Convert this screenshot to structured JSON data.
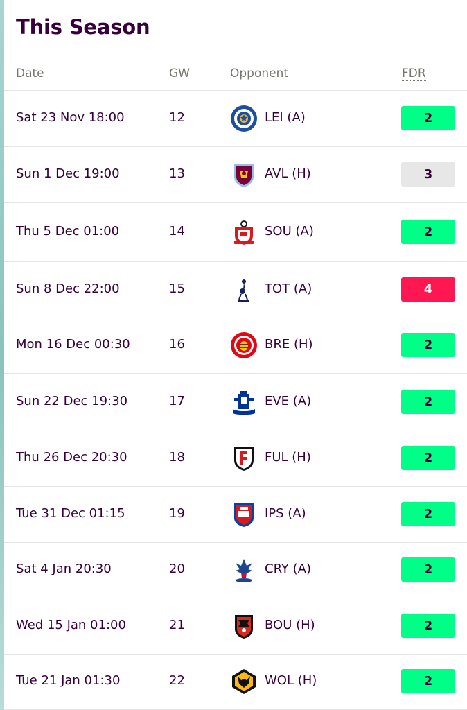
{
  "title": "This Season",
  "columns": {
    "date": "Date",
    "gw": "GW",
    "opponent": "Opponent",
    "fdr": "FDR"
  },
  "fdr_colors": {
    "2": {
      "bg": "#00ff87",
      "fg": "#37003c"
    },
    "3": {
      "bg": "#e7e7e7",
      "fg": "#37003c"
    },
    "4": {
      "bg": "#ff1751",
      "fg": "#ffffff"
    }
  },
  "fixtures": [
    {
      "date": "Sat 23 Nov 18:00",
      "gw": "12",
      "opponent": "LEI (A)",
      "fdr": "2",
      "crest": "leicester-crest-icon"
    },
    {
      "date": "Sun 1 Dec 19:00",
      "gw": "13",
      "opponent": "AVL (H)",
      "fdr": "3",
      "crest": "aston-villa-crest-icon"
    },
    {
      "date": "Thu 5 Dec 01:00",
      "gw": "14",
      "opponent": "SOU (A)",
      "fdr": "2",
      "crest": "southampton-crest-icon"
    },
    {
      "date": "Sun 8 Dec 22:00",
      "gw": "15",
      "opponent": "TOT (A)",
      "fdr": "4",
      "crest": "tottenham-crest-icon"
    },
    {
      "date": "Mon 16 Dec 00:30",
      "gw": "16",
      "opponent": "BRE (H)",
      "fdr": "2",
      "crest": "brentford-crest-icon"
    },
    {
      "date": "Sun 22 Dec 19:30",
      "gw": "17",
      "opponent": "EVE (A)",
      "fdr": "2",
      "crest": "everton-crest-icon"
    },
    {
      "date": "Thu 26 Dec 20:30",
      "gw": "18",
      "opponent": "FUL (H)",
      "fdr": "2",
      "crest": "fulham-crest-icon"
    },
    {
      "date": "Tue 31 Dec 01:15",
      "gw": "19",
      "opponent": "IPS (A)",
      "fdr": "2",
      "crest": "ipswich-crest-icon"
    },
    {
      "date": "Sat 4 Jan 20:30",
      "gw": "20",
      "opponent": "CRY (A)",
      "fdr": "2",
      "crest": "crystal-palace-crest-icon"
    },
    {
      "date": "Wed 15 Jan 01:00",
      "gw": "21",
      "opponent": "BOU (H)",
      "fdr": "2",
      "crest": "bournemouth-crest-icon"
    },
    {
      "date": "Tue 21 Jan 01:30",
      "gw": "22",
      "opponent": "WOL (H)",
      "fdr": "2",
      "crest": "wolves-crest-icon"
    }
  ]
}
